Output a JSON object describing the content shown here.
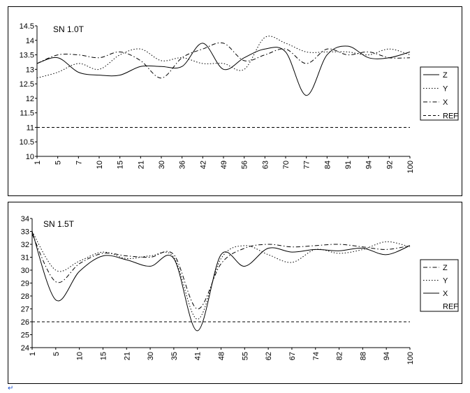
{
  "chart_data": [
    {
      "type": "line",
      "title": "SN 1.0T",
      "ylim": [
        10,
        14.5
      ],
      "yticks": [
        "14.5",
        "14",
        "13.5",
        "13",
        "12.5",
        "12",
        "11.5",
        "11",
        "10.5",
        "10"
      ],
      "categories": [
        "1",
        "5",
        "7",
        "10",
        "15",
        "21",
        "30",
        "36",
        "42",
        "49",
        "56",
        "63",
        "70",
        "77",
        "84",
        "91",
        "94",
        "92",
        "100"
      ],
      "legend": [
        "Z",
        "Y",
        "X",
        "REF"
      ],
      "legend_position": "right",
      "grid": false,
      "series": [
        {
          "name": "Z",
          "style": "solid",
          "values": [
            13.2,
            13.4,
            12.9,
            12.8,
            12.8,
            13.1,
            13.1,
            13.1,
            13.9,
            13.0,
            13.4,
            13.7,
            13.6,
            12.1,
            13.5,
            13.8,
            13.4,
            13.4,
            13.6
          ]
        },
        {
          "name": "Y",
          "style": "dotted",
          "values": [
            12.7,
            12.9,
            13.2,
            13.0,
            13.5,
            13.7,
            13.3,
            13.4,
            13.2,
            13.2,
            13.0,
            14.1,
            13.9,
            13.6,
            13.6,
            13.6,
            13.5,
            13.7,
            13.5
          ]
        },
        {
          "name": "X",
          "style": "dashdot",
          "values": [
            13.2,
            13.5,
            13.5,
            13.4,
            13.6,
            13.3,
            12.7,
            13.4,
            13.7,
            13.9,
            13.3,
            13.5,
            13.7,
            13.2,
            13.7,
            13.5,
            13.6,
            13.4,
            13.4
          ]
        },
        {
          "name": "REF",
          "style": "dashed",
          "values": [
            11,
            11,
            11,
            11,
            11,
            11,
            11,
            11,
            11,
            11,
            11,
            11,
            11,
            11,
            11,
            11,
            11,
            11,
            11
          ]
        }
      ]
    },
    {
      "type": "line",
      "title": "SN 1.5T",
      "ylim": [
        24,
        34
      ],
      "yticks": [
        "34",
        "33",
        "32",
        "31",
        "30",
        "29",
        "28",
        "27",
        "26",
        "25",
        "24"
      ],
      "categories": [
        "1",
        "5",
        "10",
        "15",
        "21",
        "30",
        "35",
        "41",
        "48",
        "55",
        "62",
        "67",
        "74",
        "82",
        "88",
        "94",
        "100"
      ],
      "legend": [
        "Z",
        "Y",
        "X",
        "REF"
      ],
      "legend_position": "right",
      "grid": false,
      "series": [
        {
          "name": "Z",
          "style": "dashdot",
          "values": [
            32.8,
            29.1,
            30.5,
            31.3,
            31.1,
            31.0,
            31.2,
            27.0,
            30.5,
            31.7,
            32.0,
            31.8,
            31.9,
            32.0,
            31.8,
            31.6,
            31.9
          ]
        },
        {
          "name": "Y",
          "style": "dotted",
          "values": [
            33.0,
            30.0,
            30.7,
            31.4,
            30.9,
            31.1,
            31.0,
            26.2,
            30.9,
            31.9,
            31.2,
            30.6,
            31.6,
            31.3,
            31.6,
            32.2,
            31.8
          ]
        },
        {
          "name": "X",
          "style": "solid",
          "values": [
            33.0,
            27.7,
            29.9,
            31.1,
            30.8,
            30.3,
            30.9,
            25.3,
            31.2,
            30.3,
            31.7,
            31.4,
            31.6,
            31.5,
            31.7,
            31.2,
            31.9
          ]
        },
        {
          "name": "REF",
          "style": "dashed",
          "values": [
            26,
            26,
            26,
            26,
            26,
            26,
            26,
            26,
            26,
            26,
            26,
            26,
            26,
            26,
            26,
            26,
            26
          ]
        }
      ]
    }
  ]
}
